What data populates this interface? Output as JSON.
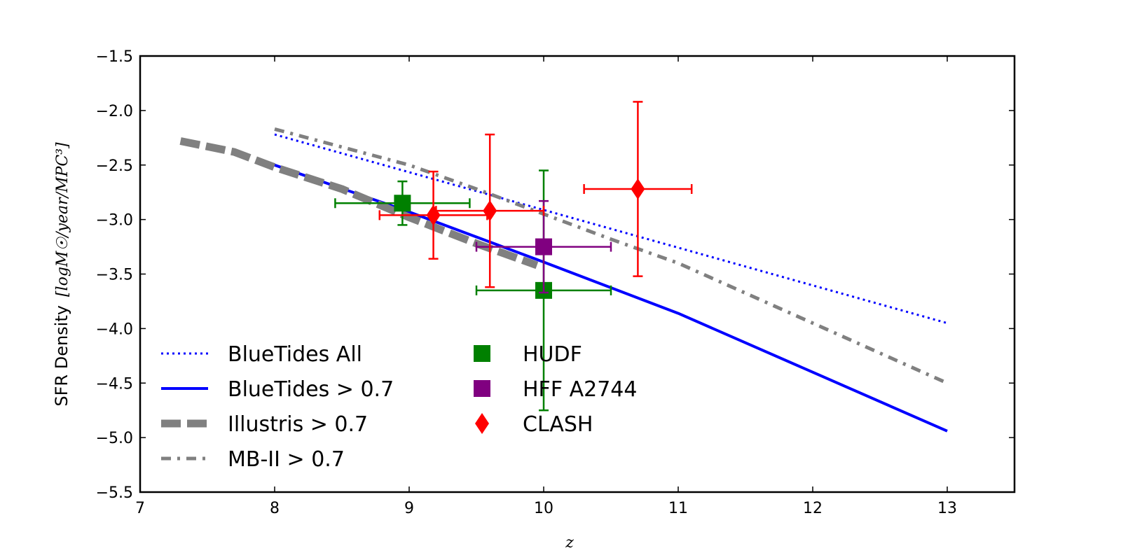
{
  "chart_data": {
    "type": "line",
    "title": "",
    "xlabel": "z",
    "ylabel": "SFR Density",
    "ylabel_unit": "[logM☉/year/MPC³]",
    "xlim": [
      7,
      13.5
    ],
    "ylim": [
      -5.5,
      -1.5
    ],
    "xticks": [
      7,
      8,
      9,
      10,
      11,
      12,
      13
    ],
    "xtick_labels": [
      "7",
      "8",
      "9",
      "10",
      "11",
      "12",
      "13"
    ],
    "yticks": [
      -1.5,
      -2.0,
      -2.5,
      -3.0,
      -3.5,
      -4.0,
      -4.5,
      -5.0,
      -5.5
    ],
    "ytick_labels": [
      "−1.5",
      "−2.0",
      "−2.5",
      "−3.0",
      "−3.5",
      "−4.0",
      "−4.5",
      "−5.0",
      "−5.5"
    ],
    "legend_position": "lower-left",
    "series": [
      {
        "name": "BlueTides All",
        "style": "dotted",
        "color": "#0000ff",
        "x": [
          8,
          13
        ],
        "y": [
          -2.22,
          -3.95
        ]
      },
      {
        "name": "BlueTides > 0.7",
        "style": "solid",
        "color": "#0000ff",
        "x": [
          8,
          9,
          10,
          11,
          12,
          13
        ],
        "y": [
          -2.5,
          -2.93,
          -3.39,
          -3.86,
          -4.4,
          -4.94
        ]
      },
      {
        "name": "Illustris  > 0.7",
        "style": "dashed",
        "color": "#808080",
        "x": [
          7.3,
          7.7,
          8.0,
          8.5,
          9.0,
          9.5,
          9.95
        ],
        "y": [
          -2.28,
          -2.38,
          -2.52,
          -2.72,
          -2.98,
          -3.22,
          -3.42
        ]
      },
      {
        "name": "MB-II > 0.7",
        "style": "dashdot",
        "color": "#808080",
        "x": [
          8.0,
          9.0,
          9.5,
          10.0,
          10.5,
          11.0,
          12.0,
          13.0
        ],
        "y": [
          -2.17,
          -2.5,
          -2.72,
          -2.95,
          -3.18,
          -3.4,
          -3.95,
          -4.5
        ]
      }
    ],
    "points": [
      {
        "name": "HUDF",
        "marker": "square",
        "color": "#008000",
        "data": [
          {
            "x": 8.95,
            "y": -2.85,
            "xerr_low": 0.5,
            "xerr_high": 0.5,
            "yerr_low": 0.2,
            "yerr_high": 0.2
          },
          {
            "x": 10.0,
            "y": -3.65,
            "xerr_low": 0.5,
            "xerr_high": 0.5,
            "yerr_low": 1.1,
            "yerr_high": 1.1
          }
        ]
      },
      {
        "name": "HFF A2744",
        "marker": "square",
        "color": "#800080",
        "data": [
          {
            "x": 10.0,
            "y": -3.25,
            "xerr_low": 0.5,
            "xerr_high": 0.5,
            "yerr_low": 0.42,
            "yerr_high": 0.42
          }
        ]
      },
      {
        "name": "CLASH",
        "marker": "diamond",
        "color": "#ff0000",
        "data": [
          {
            "x": 9.18,
            "y": -2.96,
            "xerr_low": 0.4,
            "xerr_high": 0.4,
            "yerr_low": 0.4,
            "yerr_high": 0.4
          },
          {
            "x": 9.6,
            "y": -2.92,
            "xerr_low": 0.4,
            "xerr_high": 0.4,
            "yerr_low": 0.7,
            "yerr_high": 0.7
          },
          {
            "x": 10.7,
            "y": -2.72,
            "xerr_low": 0.4,
            "xerr_high": 0.4,
            "yerr_low": 0.8,
            "yerr_high": 0.8
          }
        ]
      }
    ]
  }
}
